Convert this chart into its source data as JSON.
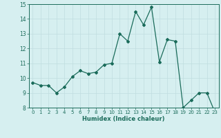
{
  "x": [
    0,
    1,
    2,
    3,
    4,
    5,
    6,
    7,
    8,
    9,
    10,
    11,
    12,
    13,
    14,
    15,
    16,
    17,
    18,
    19,
    20,
    21,
    22,
    23
  ],
  "y": [
    9.7,
    9.5,
    9.5,
    9.0,
    9.4,
    10.1,
    10.5,
    10.3,
    10.4,
    10.9,
    11.0,
    13.0,
    12.5,
    14.5,
    13.6,
    14.8,
    11.1,
    12.6,
    12.5,
    8.0,
    8.5,
    9.0,
    9.0,
    7.7
  ],
  "ylim": [
    8,
    15
  ],
  "yticks": [
    8,
    9,
    10,
    11,
    12,
    13,
    14,
    15
  ],
  "xticks": [
    0,
    1,
    2,
    3,
    4,
    5,
    6,
    7,
    8,
    9,
    10,
    11,
    12,
    13,
    14,
    15,
    16,
    17,
    18,
    19,
    20,
    21,
    22,
    23
  ],
  "xlabel": "Humidex (Indice chaleur)",
  "line_color": "#1a6b5a",
  "bg_color": "#d6eff0",
  "grid_color": "#c0dde0",
  "title": ""
}
